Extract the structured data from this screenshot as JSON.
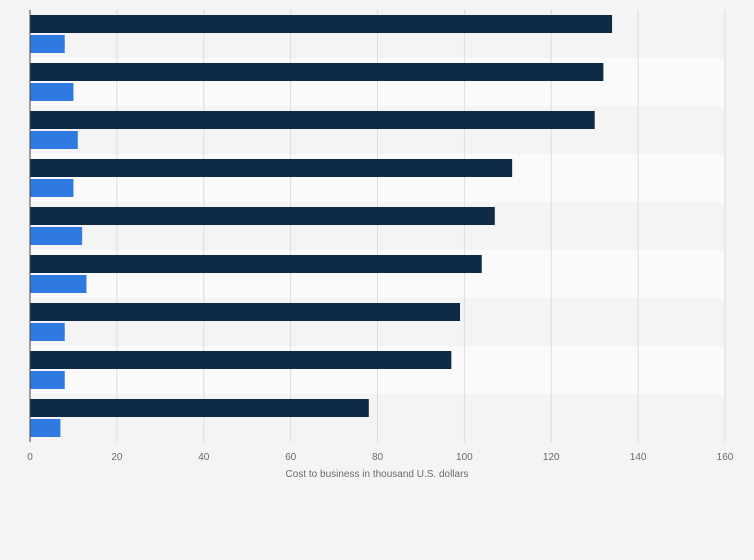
{
  "chart_data": {
    "type": "bar",
    "orientation": "horizontal",
    "title": "",
    "xlabel": "Cost to business in thousand U.S. dollars",
    "ylabel": "",
    "xlim": [
      0,
      160
    ],
    "x_ticks": [
      "0",
      "20",
      "40",
      "60",
      "80",
      "100",
      "120",
      "140",
      "160"
    ],
    "grid": true,
    "legend": "none",
    "categories": [
      "",
      "",
      "",
      "",
      "",
      "",
      "",
      "",
      ""
    ],
    "series": [
      {
        "values": [
          134,
          132,
          130,
          111,
          107,
          104,
          99,
          97,
          78
        ],
        "color": "#0f2a45"
      },
      {
        "values": [
          8,
          10,
          11,
          10,
          12,
          13,
          8,
          8,
          7
        ],
        "color": "#2f7ae0"
      }
    ]
  }
}
